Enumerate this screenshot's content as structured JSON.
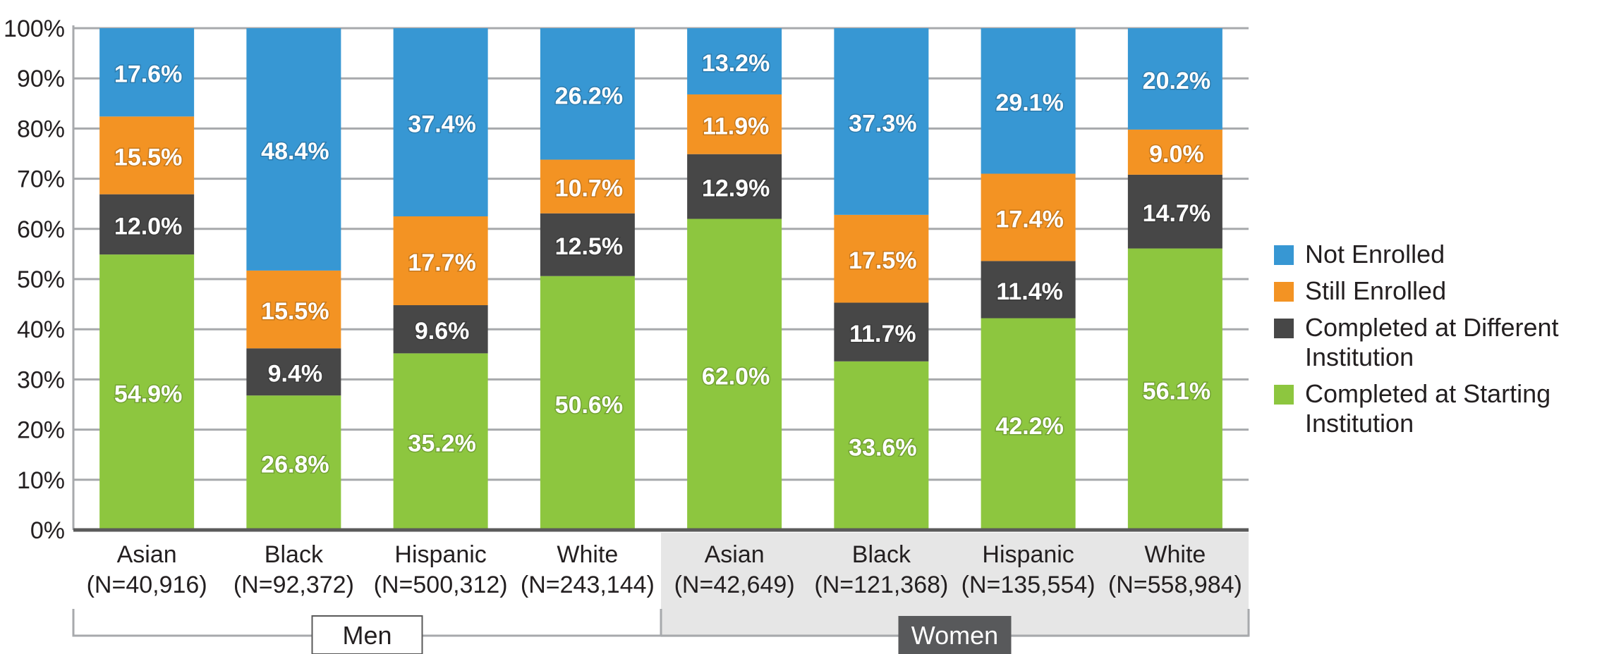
{
  "chart_data": {
    "type": "bar",
    "stacked": true,
    "title": "",
    "xlabel": "",
    "ylabel": "",
    "ylim": [
      0,
      100
    ],
    "yticks": [
      "0%",
      "10%",
      "20%",
      "30%",
      "40%",
      "50%",
      "60%",
      "70%",
      "80%",
      "90%",
      "100%"
    ],
    "grid": true,
    "legend_position": "right",
    "categories": [
      {
        "name": "Asian",
        "n": "(N=40,916)",
        "group": "Men"
      },
      {
        "name": "Black",
        "n": "(N=92,372)",
        "group": "Men"
      },
      {
        "name": "Hispanic",
        "n": "(N=500,312)",
        "group": "Men"
      },
      {
        "name": "White",
        "n": "(N=243,144)",
        "group": "Men"
      },
      {
        "name": "Asian",
        "n": "(N=42,649)",
        "group": "Women"
      },
      {
        "name": "Black",
        "n": "(N=121,368)",
        "group": "Women"
      },
      {
        "name": "Hispanic",
        "n": "(N=135,554)",
        "group": "Women"
      },
      {
        "name": "White",
        "n": "(N=558,984)",
        "group": "Women"
      }
    ],
    "groups": [
      "Men",
      "Women"
    ],
    "series": [
      {
        "name": "Completed at Starting Institution",
        "color": "#8dc63f",
        "values": [
          54.9,
          26.8,
          35.2,
          50.6,
          62.0,
          33.6,
          42.2,
          56.1
        ]
      },
      {
        "name": "Completed at Different Institution",
        "color": "#474747",
        "values": [
          12.0,
          9.4,
          9.6,
          12.5,
          12.9,
          11.7,
          11.4,
          14.7
        ]
      },
      {
        "name": "Still Enrolled",
        "color": "#f39323",
        "values": [
          15.5,
          15.5,
          17.7,
          10.7,
          11.9,
          17.5,
          17.4,
          9.0
        ]
      },
      {
        "name": "Not Enrolled",
        "color": "#3797d3",
        "values": [
          17.6,
          48.4,
          37.4,
          26.2,
          13.2,
          37.3,
          29.1,
          20.2
        ]
      }
    ],
    "legend": [
      {
        "label": "Not Enrolled",
        "color": "#3797d3"
      },
      {
        "label": "Still Enrolled",
        "color": "#f39323"
      },
      {
        "label": "Completed at Different Institution",
        "color": "#474747"
      },
      {
        "label": "Completed at Starting Institution",
        "color": "#8dc63f"
      }
    ]
  },
  "colors": {
    "axis": "#5a5a5a",
    "grid": "#a7a9ac",
    "women_band": "#e6e6e6",
    "women_label_bg": "#58595b",
    "text": "#231f20"
  }
}
